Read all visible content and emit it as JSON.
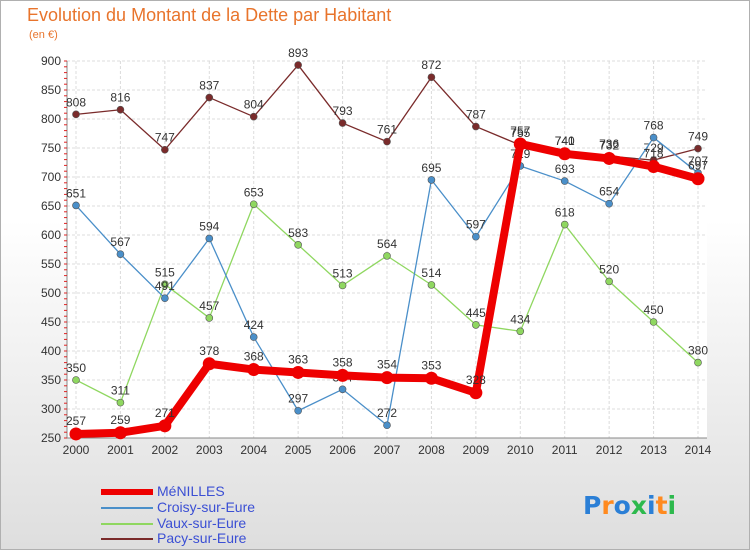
{
  "title": "Evolution du Montant de la Dette par Habitant",
  "unit": "(en €)",
  "brand": {
    "letters": [
      "P",
      "r",
      "o",
      "x",
      "i",
      "t",
      "i"
    ],
    "colors": [
      "#2b7fd6",
      "#ff8a1f",
      "#2b7fd6",
      "#2db94d",
      "#2b7fd6",
      "#ff8a1f",
      "#2db94d"
    ]
  },
  "chart_data": {
    "type": "line",
    "x": [
      "2000",
      "2001",
      "2002",
      "2003",
      "2004",
      "2005",
      "2006",
      "2007",
      "2008",
      "2009",
      "2010",
      "2011",
      "2012",
      "2013",
      "2014"
    ],
    "ylim": [
      250,
      900
    ],
    "yticks": [
      "250",
      "300",
      "350",
      "400",
      "450",
      "500",
      "550",
      "600",
      "650",
      "700",
      "750",
      "800",
      "850",
      "900"
    ],
    "grid": true,
    "legend_position": "bottom-left",
    "series": [
      {
        "name": "Pacy-sur-Eure",
        "color": "#7a2b2b",
        "values": [
          808,
          816,
          747,
          837,
          804,
          893,
          793,
          761,
          872,
          787,
          755,
          741,
          736,
          729,
          749
        ]
      },
      {
        "name": "Vaux-sur-Eure",
        "color": "#8fd760",
        "values": [
          350,
          311,
          515,
          457,
          653,
          583,
          513,
          564,
          514,
          445,
          434,
          618,
          520,
          450,
          380
        ]
      },
      {
        "name": "Croisy-sur-Eure",
        "color": "#4a8fc9",
        "values": [
          651,
          567,
          491,
          594,
          424,
          297,
          334,
          272,
          695,
          597,
          719,
          693,
          654,
          768,
          707
        ]
      },
      {
        "name": "MéNILLES",
        "color": "#ee0000",
        "values": [
          257,
          259,
          271,
          378,
          368,
          363,
          358,
          354,
          353,
          328,
          757,
          740,
          732,
          718,
          697
        ]
      }
    ],
    "legend_order": [
      "MéNILLES",
      "Croisy-sur-Eure",
      "Vaux-sur-Eure",
      "Pacy-sur-Eure"
    ]
  }
}
